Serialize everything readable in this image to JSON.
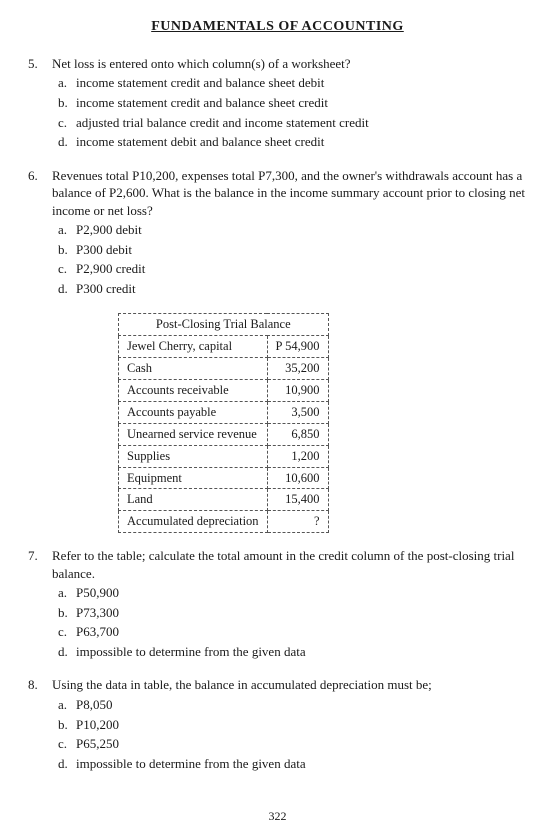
{
  "header": "FUNDAMENTALS OF ACCOUNTING",
  "q5": {
    "num": "5.",
    "stem": "Net loss is entered onto which column(s) of a worksheet?",
    "a": {
      "l": "a.",
      "t": "income statement credit and balance sheet debit"
    },
    "b": {
      "l": "b.",
      "t": "income statement credit and balance sheet credit"
    },
    "c": {
      "l": "c.",
      "t": "adjusted trial balance credit and income statement credit"
    },
    "d": {
      "l": "d.",
      "t": "income statement debit and balance sheet credit"
    }
  },
  "q6": {
    "num": "6.",
    "stem": "Revenues total P10,200, expenses total P7,300, and the owner's withdrawals account has a balance of P2,600. What is the balance in the income summary account prior to closing net income or net loss?",
    "a": {
      "l": "a.",
      "t": "P2,900 debit"
    },
    "b": {
      "l": "b.",
      "t": "P300 debit"
    },
    "c": {
      "l": "c.",
      "t": "P2,900 credit"
    },
    "d": {
      "l": "d.",
      "t": "P300 credit"
    }
  },
  "table": {
    "title": "Post-Closing Trial Balance",
    "rows": [
      {
        "name": "Jewel Cherry, capital",
        "amt": "P 54,900"
      },
      {
        "name": "Cash",
        "amt": "35,200"
      },
      {
        "name": "Accounts receivable",
        "amt": "10,900"
      },
      {
        "name": "Accounts payable",
        "amt": "3,500"
      },
      {
        "name": "Unearned service revenue",
        "amt": "6,850"
      },
      {
        "name": "Supplies",
        "amt": "1,200"
      },
      {
        "name": "Equipment",
        "amt": "10,600"
      },
      {
        "name": "Land",
        "amt": "15,400"
      },
      {
        "name": "Accumulated depreciation",
        "amt": "?"
      }
    ]
  },
  "q7": {
    "num": "7.",
    "stem": "Refer to the table; calculate the total amount in the credit column of the post-closing trial balance.",
    "a": {
      "l": "a.",
      "t": "P50,900"
    },
    "b": {
      "l": "b.",
      "t": "P73,300"
    },
    "c": {
      "l": "c.",
      "t": "P63,700"
    },
    "d": {
      "l": "d.",
      "t": "impossible to determine from the given data"
    }
  },
  "q8": {
    "num": "8.",
    "stem": "Using the data in table, the balance in accumulated depreciation must be;",
    "a": {
      "l": "a.",
      "t": "P8,050"
    },
    "b": {
      "l": "b.",
      "t": "P10,200"
    },
    "c": {
      "l": "c.",
      "t": "P65,250"
    },
    "d": {
      "l": "d.",
      "t": "impossible to determine from the given data"
    }
  },
  "page_num": "322"
}
